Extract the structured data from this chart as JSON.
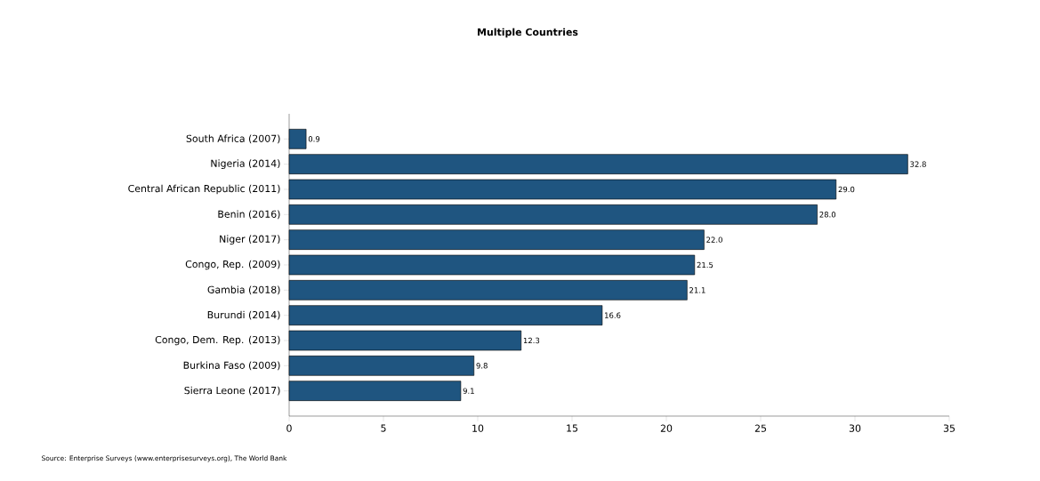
{
  "chart_data": {
    "type": "bar",
    "orientation": "horizontal",
    "title": "Multiple Countries",
    "categories": [
      "South Africa (2007)",
      "Nigeria (2014)",
      "Central African Republic (2011)",
      "Benin (2016)",
      "Niger (2017)",
      "Congo, Rep. (2009)",
      "Gambia (2018)",
      "Burundi (2014)",
      "Congo, Dem. Rep. (2013)",
      "Burkina Faso (2009)",
      "Sierra Leone (2017)"
    ],
    "values": [
      0.9,
      32.8,
      29.0,
      28.0,
      22.0,
      21.5,
      21.1,
      16.6,
      12.3,
      9.8,
      9.1
    ],
    "value_labels": [
      "0.9",
      "32.8",
      "29.0",
      "28.0",
      "22.0",
      "21.5",
      "21.1",
      "16.6",
      "12.3",
      "9.8",
      "9.1"
    ],
    "color": "#1f5580",
    "xlim": [
      0,
      35
    ],
    "xticks": [
      0,
      5,
      10,
      15,
      20,
      25,
      30,
      35
    ],
    "grid": false,
    "annotations": [
      "Source: Enterprise Surveys (www.enterprisesurveys.org), The World Bank"
    ]
  }
}
